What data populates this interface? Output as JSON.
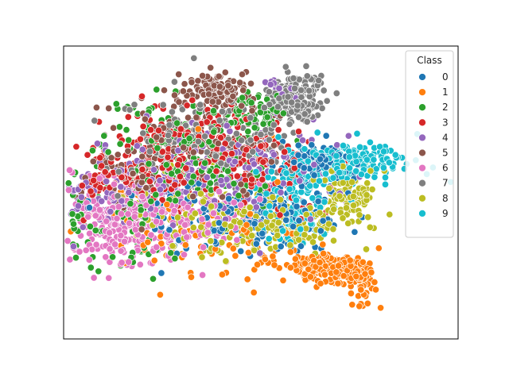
{
  "chart_data": {
    "type": "scatter",
    "title": "",
    "xlabel": "",
    "ylabel": "",
    "xlim": [
      -100,
      100
    ],
    "ylim": [
      -100,
      100
    ],
    "grid": false,
    "axes_ticks": false,
    "legend": {
      "title": "Class",
      "placement": "top-right",
      "entries": [
        {
          "label": "0",
          "color": "#1f77b4"
        },
        {
          "label": "1",
          "color": "#ff7f0e"
        },
        {
          "label": "2",
          "color": "#2ca02c"
        },
        {
          "label": "3",
          "color": "#d62728"
        },
        {
          "label": "4",
          "color": "#9467bd"
        },
        {
          "label": "5",
          "color": "#8c564b"
        },
        {
          "label": "6",
          "color": "#e377c2"
        },
        {
          "label": "7",
          "color": "#7f7f7f"
        },
        {
          "label": "8",
          "color": "#bcbd22"
        },
        {
          "label": "9",
          "color": "#17becf"
        }
      ]
    },
    "series": [
      {
        "class": "0",
        "color": "#1f77b4",
        "clusters": [
          {
            "cx": 27,
            "cy": 19,
            "sx": 10,
            "sy": 8,
            "n": 90
          },
          {
            "cx": 15,
            "cy": -15,
            "sx": 14,
            "sy": 12,
            "n": 110
          },
          {
            "cx": -15,
            "cy": -25,
            "sx": 18,
            "sy": 10,
            "n": 70
          },
          {
            "cx": -40,
            "cy": -20,
            "sx": 15,
            "sy": 12,
            "n": 40
          }
        ]
      },
      {
        "class": "1",
        "color": "#ff7f0e",
        "clusters": [
          {
            "cx": 35,
            "cy": -52,
            "sx": 10,
            "sy": 5,
            "n": 170
          },
          {
            "cx": 50,
            "cy": -62,
            "sx": 4,
            "sy": 9,
            "n": 50
          },
          {
            "cx": -5,
            "cy": -40,
            "sx": 25,
            "sy": 10,
            "n": 50
          },
          {
            "cx": -50,
            "cy": -20,
            "sx": 25,
            "sy": 20,
            "n": 50
          }
        ]
      },
      {
        "class": "2",
        "color": "#2ca02c",
        "clusters": [
          {
            "cx": -5,
            "cy": 55,
            "sx": 8,
            "sy": 6,
            "n": 70
          },
          {
            "cx": -45,
            "cy": 25,
            "sx": 20,
            "sy": 20,
            "n": 150
          },
          {
            "cx": -70,
            "cy": -25,
            "sx": 15,
            "sy": 15,
            "n": 70
          },
          {
            "cx": -10,
            "cy": 20,
            "sx": 15,
            "sy": 15,
            "n": 60
          }
        ]
      },
      {
        "class": "3",
        "color": "#d62728",
        "clusters": [
          {
            "cx": -45,
            "cy": 25,
            "sx": 20,
            "sy": 18,
            "n": 160
          },
          {
            "cx": -75,
            "cy": 10,
            "sx": 12,
            "sy": 12,
            "n": 60
          },
          {
            "cx": -15,
            "cy": 35,
            "sx": 15,
            "sy": 15,
            "n": 80
          },
          {
            "cx": 10,
            "cy": 10,
            "sx": 15,
            "sy": 15,
            "n": 50
          }
        ]
      },
      {
        "class": "4",
        "color": "#9467bd",
        "clusters": [
          {
            "cx": -40,
            "cy": 10,
            "sx": 25,
            "sy": 18,
            "n": 160
          },
          {
            "cx": -85,
            "cy": -5,
            "sx": 10,
            "sy": 12,
            "n": 50
          },
          {
            "cx": 5,
            "cy": 20,
            "sx": 20,
            "sy": 15,
            "n": 80
          },
          {
            "cx": 10,
            "cy": 70,
            "sx": 5,
            "sy": 4,
            "n": 20
          }
        ]
      },
      {
        "class": "5",
        "color": "#8c564b",
        "clusters": [
          {
            "cx": -20,
            "cy": 70,
            "sx": 8,
            "sy": 6,
            "n": 140
          },
          {
            "cx": -35,
            "cy": 35,
            "sx": 20,
            "sy": 15,
            "n": 120
          },
          {
            "cx": -60,
            "cy": 15,
            "sx": 15,
            "sy": 15,
            "n": 60
          }
        ]
      },
      {
        "class": "6",
        "color": "#e377c2",
        "clusters": [
          {
            "cx": -75,
            "cy": -20,
            "sx": 12,
            "sy": 15,
            "n": 220
          },
          {
            "cx": -45,
            "cy": -20,
            "sx": 15,
            "sy": 12,
            "n": 120
          },
          {
            "cx": -20,
            "cy": -10,
            "sx": 15,
            "sy": 15,
            "n": 50
          }
        ]
      },
      {
        "class": "7",
        "color": "#7f7f7f",
        "clusters": [
          {
            "cx": 18,
            "cy": 65,
            "sx": 7,
            "sy": 8,
            "n": 180
          },
          {
            "cx": -40,
            "cy": 35,
            "sx": 20,
            "sy": 15,
            "n": 100
          },
          {
            "cx": -10,
            "cy": 40,
            "sx": 15,
            "sy": 10,
            "n": 60
          }
        ]
      },
      {
        "class": "8",
        "color": "#bcbd22",
        "clusters": [
          {
            "cx": 45,
            "cy": 0,
            "sx": 6,
            "sy": 8,
            "n": 90
          },
          {
            "cx": 15,
            "cy": -20,
            "sx": 15,
            "sy": 10,
            "n": 120
          },
          {
            "cx": -15,
            "cy": -25,
            "sx": 20,
            "sy": 10,
            "n": 90
          },
          {
            "cx": -40,
            "cy": -10,
            "sx": 15,
            "sy": 12,
            "n": 40
          }
        ]
      },
      {
        "class": "9",
        "color": "#17becf",
        "clusters": [
          {
            "cx": 45,
            "cy": 20,
            "sx": 15,
            "sy": 7,
            "n": 160
          },
          {
            "cx": 20,
            "cy": 5,
            "sx": 10,
            "sy": 12,
            "n": 80
          },
          {
            "cx": 18,
            "cy": -20,
            "sx": 8,
            "sy": 8,
            "n": 40
          }
        ]
      }
    ]
  }
}
